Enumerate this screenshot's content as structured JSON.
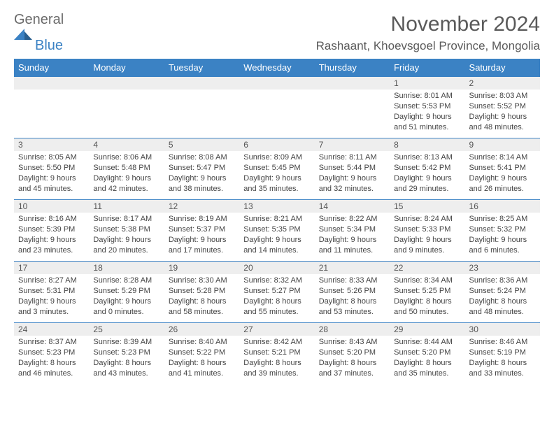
{
  "brand": {
    "general": "General",
    "blue": "Blue"
  },
  "title": "November 2024",
  "location": "Rashaant, Khoevsgoel Province, Mongolia",
  "columns": [
    "Sunday",
    "Monday",
    "Tuesday",
    "Wednesday",
    "Thursday",
    "Friday",
    "Saturday"
  ],
  "colors": {
    "header_bg": "#3b82c4",
    "header_text": "#ffffff",
    "daynum_bg": "#eeeeee",
    "border": "#3b82c4",
    "text": "#444444",
    "title": "#5a5a5a"
  },
  "weeks": [
    [
      {
        "n": "",
        "sr": "",
        "ss": "",
        "dl": ""
      },
      {
        "n": "",
        "sr": "",
        "ss": "",
        "dl": ""
      },
      {
        "n": "",
        "sr": "",
        "ss": "",
        "dl": ""
      },
      {
        "n": "",
        "sr": "",
        "ss": "",
        "dl": ""
      },
      {
        "n": "",
        "sr": "",
        "ss": "",
        "dl": ""
      },
      {
        "n": "1",
        "sr": "Sunrise: 8:01 AM",
        "ss": "Sunset: 5:53 PM",
        "dl": "Daylight: 9 hours and 51 minutes."
      },
      {
        "n": "2",
        "sr": "Sunrise: 8:03 AM",
        "ss": "Sunset: 5:52 PM",
        "dl": "Daylight: 9 hours and 48 minutes."
      }
    ],
    [
      {
        "n": "3",
        "sr": "Sunrise: 8:05 AM",
        "ss": "Sunset: 5:50 PM",
        "dl": "Daylight: 9 hours and 45 minutes."
      },
      {
        "n": "4",
        "sr": "Sunrise: 8:06 AM",
        "ss": "Sunset: 5:48 PM",
        "dl": "Daylight: 9 hours and 42 minutes."
      },
      {
        "n": "5",
        "sr": "Sunrise: 8:08 AM",
        "ss": "Sunset: 5:47 PM",
        "dl": "Daylight: 9 hours and 38 minutes."
      },
      {
        "n": "6",
        "sr": "Sunrise: 8:09 AM",
        "ss": "Sunset: 5:45 PM",
        "dl": "Daylight: 9 hours and 35 minutes."
      },
      {
        "n": "7",
        "sr": "Sunrise: 8:11 AM",
        "ss": "Sunset: 5:44 PM",
        "dl": "Daylight: 9 hours and 32 minutes."
      },
      {
        "n": "8",
        "sr": "Sunrise: 8:13 AM",
        "ss": "Sunset: 5:42 PM",
        "dl": "Daylight: 9 hours and 29 minutes."
      },
      {
        "n": "9",
        "sr": "Sunrise: 8:14 AM",
        "ss": "Sunset: 5:41 PM",
        "dl": "Daylight: 9 hours and 26 minutes."
      }
    ],
    [
      {
        "n": "10",
        "sr": "Sunrise: 8:16 AM",
        "ss": "Sunset: 5:39 PM",
        "dl": "Daylight: 9 hours and 23 minutes."
      },
      {
        "n": "11",
        "sr": "Sunrise: 8:17 AM",
        "ss": "Sunset: 5:38 PM",
        "dl": "Daylight: 9 hours and 20 minutes."
      },
      {
        "n": "12",
        "sr": "Sunrise: 8:19 AM",
        "ss": "Sunset: 5:37 PM",
        "dl": "Daylight: 9 hours and 17 minutes."
      },
      {
        "n": "13",
        "sr": "Sunrise: 8:21 AM",
        "ss": "Sunset: 5:35 PM",
        "dl": "Daylight: 9 hours and 14 minutes."
      },
      {
        "n": "14",
        "sr": "Sunrise: 8:22 AM",
        "ss": "Sunset: 5:34 PM",
        "dl": "Daylight: 9 hours and 11 minutes."
      },
      {
        "n": "15",
        "sr": "Sunrise: 8:24 AM",
        "ss": "Sunset: 5:33 PM",
        "dl": "Daylight: 9 hours and 9 minutes."
      },
      {
        "n": "16",
        "sr": "Sunrise: 8:25 AM",
        "ss": "Sunset: 5:32 PM",
        "dl": "Daylight: 9 hours and 6 minutes."
      }
    ],
    [
      {
        "n": "17",
        "sr": "Sunrise: 8:27 AM",
        "ss": "Sunset: 5:31 PM",
        "dl": "Daylight: 9 hours and 3 minutes."
      },
      {
        "n": "18",
        "sr": "Sunrise: 8:28 AM",
        "ss": "Sunset: 5:29 PM",
        "dl": "Daylight: 9 hours and 0 minutes."
      },
      {
        "n": "19",
        "sr": "Sunrise: 8:30 AM",
        "ss": "Sunset: 5:28 PM",
        "dl": "Daylight: 8 hours and 58 minutes."
      },
      {
        "n": "20",
        "sr": "Sunrise: 8:32 AM",
        "ss": "Sunset: 5:27 PM",
        "dl": "Daylight: 8 hours and 55 minutes."
      },
      {
        "n": "21",
        "sr": "Sunrise: 8:33 AM",
        "ss": "Sunset: 5:26 PM",
        "dl": "Daylight: 8 hours and 53 minutes."
      },
      {
        "n": "22",
        "sr": "Sunrise: 8:34 AM",
        "ss": "Sunset: 5:25 PM",
        "dl": "Daylight: 8 hours and 50 minutes."
      },
      {
        "n": "23",
        "sr": "Sunrise: 8:36 AM",
        "ss": "Sunset: 5:24 PM",
        "dl": "Daylight: 8 hours and 48 minutes."
      }
    ],
    [
      {
        "n": "24",
        "sr": "Sunrise: 8:37 AM",
        "ss": "Sunset: 5:23 PM",
        "dl": "Daylight: 8 hours and 46 minutes."
      },
      {
        "n": "25",
        "sr": "Sunrise: 8:39 AM",
        "ss": "Sunset: 5:23 PM",
        "dl": "Daylight: 8 hours and 43 minutes."
      },
      {
        "n": "26",
        "sr": "Sunrise: 8:40 AM",
        "ss": "Sunset: 5:22 PM",
        "dl": "Daylight: 8 hours and 41 minutes."
      },
      {
        "n": "27",
        "sr": "Sunrise: 8:42 AM",
        "ss": "Sunset: 5:21 PM",
        "dl": "Daylight: 8 hours and 39 minutes."
      },
      {
        "n": "28",
        "sr": "Sunrise: 8:43 AM",
        "ss": "Sunset: 5:20 PM",
        "dl": "Daylight: 8 hours and 37 minutes."
      },
      {
        "n": "29",
        "sr": "Sunrise: 8:44 AM",
        "ss": "Sunset: 5:20 PM",
        "dl": "Daylight: 8 hours and 35 minutes."
      },
      {
        "n": "30",
        "sr": "Sunrise: 8:46 AM",
        "ss": "Sunset: 5:19 PM",
        "dl": "Daylight: 8 hours and 33 minutes."
      }
    ]
  ]
}
